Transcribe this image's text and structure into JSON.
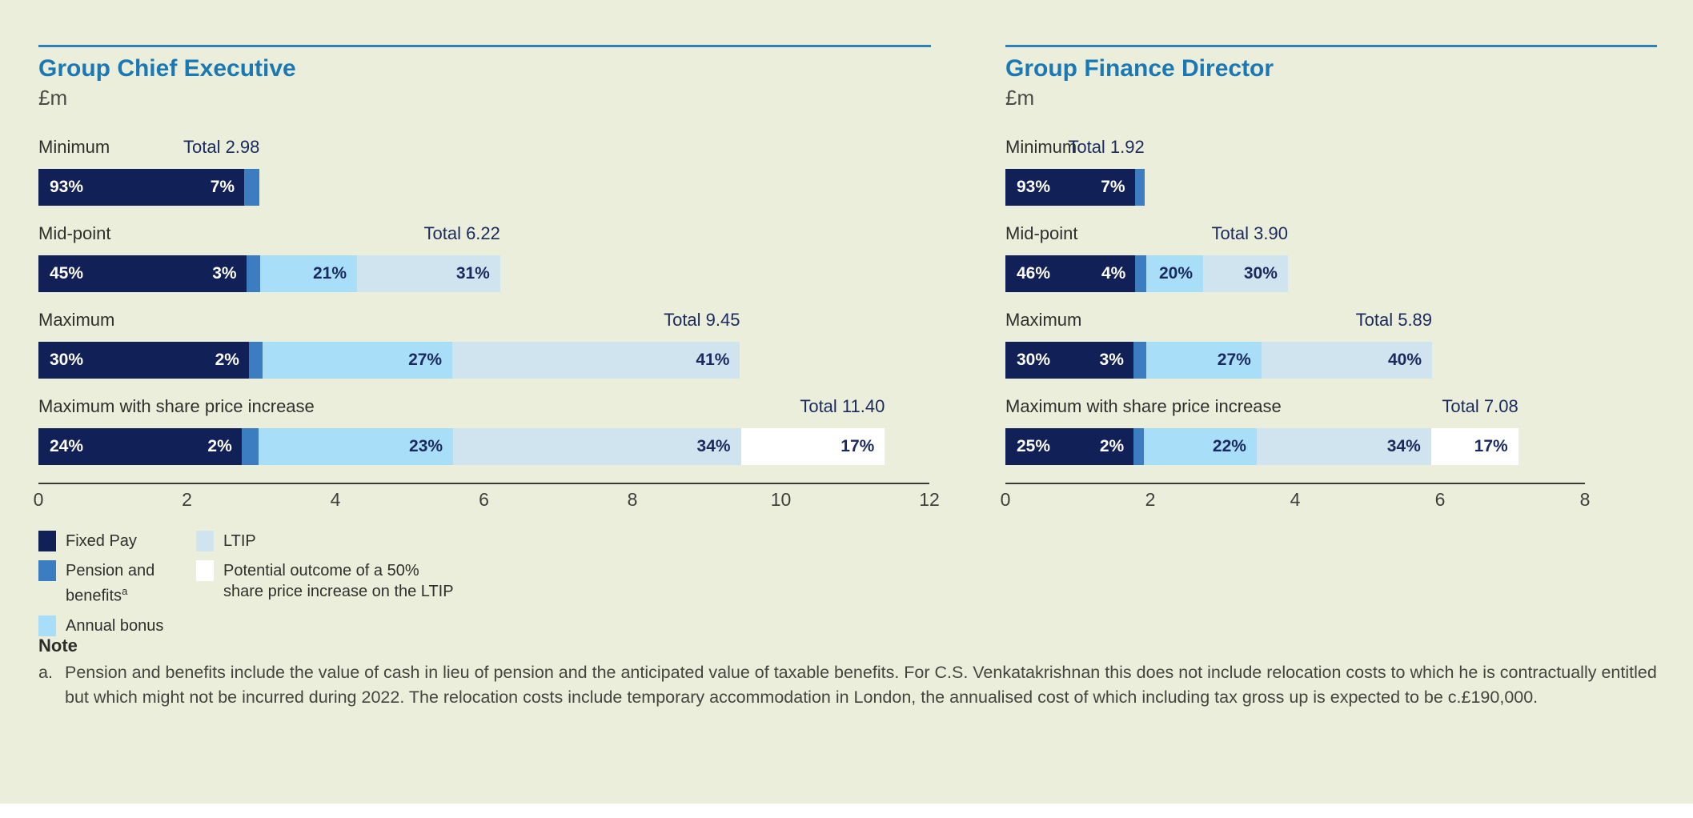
{
  "colors": {
    "page_background": "#ebeedb",
    "rule": "#2f81b5",
    "title": "#1a78b4",
    "axis_line": "#3a3a38",
    "total_text": "#1a2a5e",
    "label_text": "#2f2f2d",
    "note_text": "#454540"
  },
  "segment_colors": {
    "fixed_pay": "#112056",
    "pension": "#3c7dc1",
    "annual_bonus": "#a9def8",
    "ltip": "#d0e4ef",
    "share_price_ltip": "#ffffff"
  },
  "chart_data": [
    {
      "type": "bar",
      "orientation": "horizontal-stacked",
      "title": "Group Chief Executive",
      "unit_label": "£m",
      "total_prefix": "Total",
      "xlim": [
        0,
        12
      ],
      "ticks": [
        0,
        2,
        4,
        6,
        8,
        10,
        12
      ],
      "rows": [
        {
          "label": "Minimum",
          "total": 2.98,
          "total_display": "2.98",
          "segments": [
            {
              "series": "fixed_pay",
              "pct": 93
            },
            {
              "series": "pension",
              "pct": 7
            }
          ]
        },
        {
          "label": "Mid-point",
          "total": 6.22,
          "total_display": "6.22",
          "segments": [
            {
              "series": "fixed_pay",
              "pct": 45
            },
            {
              "series": "pension",
              "pct": 3
            },
            {
              "series": "annual_bonus",
              "pct": 21
            },
            {
              "series": "ltip",
              "pct": 31
            }
          ]
        },
        {
          "label": "Maximum",
          "total": 9.45,
          "total_display": "9.45",
          "segments": [
            {
              "series": "fixed_pay",
              "pct": 30
            },
            {
              "series": "pension",
              "pct": 2
            },
            {
              "series": "annual_bonus",
              "pct": 27
            },
            {
              "series": "ltip",
              "pct": 41
            }
          ]
        },
        {
          "label": "Maximum with share price increase",
          "total": 11.4,
          "total_display": "11.40",
          "segments": [
            {
              "series": "fixed_pay",
              "pct": 24
            },
            {
              "series": "pension",
              "pct": 2
            },
            {
              "series": "annual_bonus",
              "pct": 23
            },
            {
              "series": "ltip",
              "pct": 34
            },
            {
              "series": "share_price_ltip",
              "pct": 17
            }
          ]
        }
      ]
    },
    {
      "type": "bar",
      "orientation": "horizontal-stacked",
      "title": "Group Finance Director",
      "unit_label": "£m",
      "total_prefix": "Total",
      "xlim": [
        0,
        8
      ],
      "ticks": [
        0,
        2,
        4,
        6,
        8
      ],
      "rows": [
        {
          "label": "Minimum",
          "total": 1.92,
          "total_display": "1.92",
          "segments": [
            {
              "series": "fixed_pay",
              "pct": 93
            },
            {
              "series": "pension",
              "pct": 7
            }
          ]
        },
        {
          "label": "Mid-point",
          "total": 3.9,
          "total_display": "3.90",
          "segments": [
            {
              "series": "fixed_pay",
              "pct": 46
            },
            {
              "series": "pension",
              "pct": 4
            },
            {
              "series": "annual_bonus",
              "pct": 20
            },
            {
              "series": "ltip",
              "pct": 30
            }
          ]
        },
        {
          "label": "Maximum",
          "total": 5.89,
          "total_display": "5.89",
          "segments": [
            {
              "series": "fixed_pay",
              "pct": 30
            },
            {
              "series": "pension",
              "pct": 3
            },
            {
              "series": "annual_bonus",
              "pct": 27
            },
            {
              "series": "ltip",
              "pct": 40
            }
          ]
        },
        {
          "label": "Maximum with share price increase",
          "total": 7.08,
          "total_display": "7.08",
          "segments": [
            {
              "series": "fixed_pay",
              "pct": 25
            },
            {
              "series": "pension",
              "pct": 2
            },
            {
              "series": "annual_bonus",
              "pct": 22
            },
            {
              "series": "ltip",
              "pct": 34
            },
            {
              "series": "share_price_ltip",
              "pct": 17
            }
          ]
        }
      ]
    }
  ],
  "legend": {
    "items": [
      {
        "series": "fixed_pay",
        "label": "Fixed Pay"
      },
      {
        "series": "pension",
        "label": "Pension and benefits",
        "superscript": "a"
      },
      {
        "series": "annual_bonus",
        "label": "Annual bonus"
      },
      {
        "series": "ltip",
        "label": "LTIP"
      },
      {
        "series": "share_price_ltip",
        "label": "Potential outcome of a 50% share price increase on the LTIP"
      }
    ]
  },
  "note": {
    "heading": "Note",
    "marker": "a.",
    "text": "Pension and benefits include the value of cash in lieu of pension and the anticipated value of taxable benefits. For C.S. Venkatakrishnan this does not include relocation costs to which he is contractually entitled but which might not be incurred during 2022. The relocation costs include temporary accommodation in London, the annualised cost of which including tax gross up is expected to be c.£190,000."
  }
}
